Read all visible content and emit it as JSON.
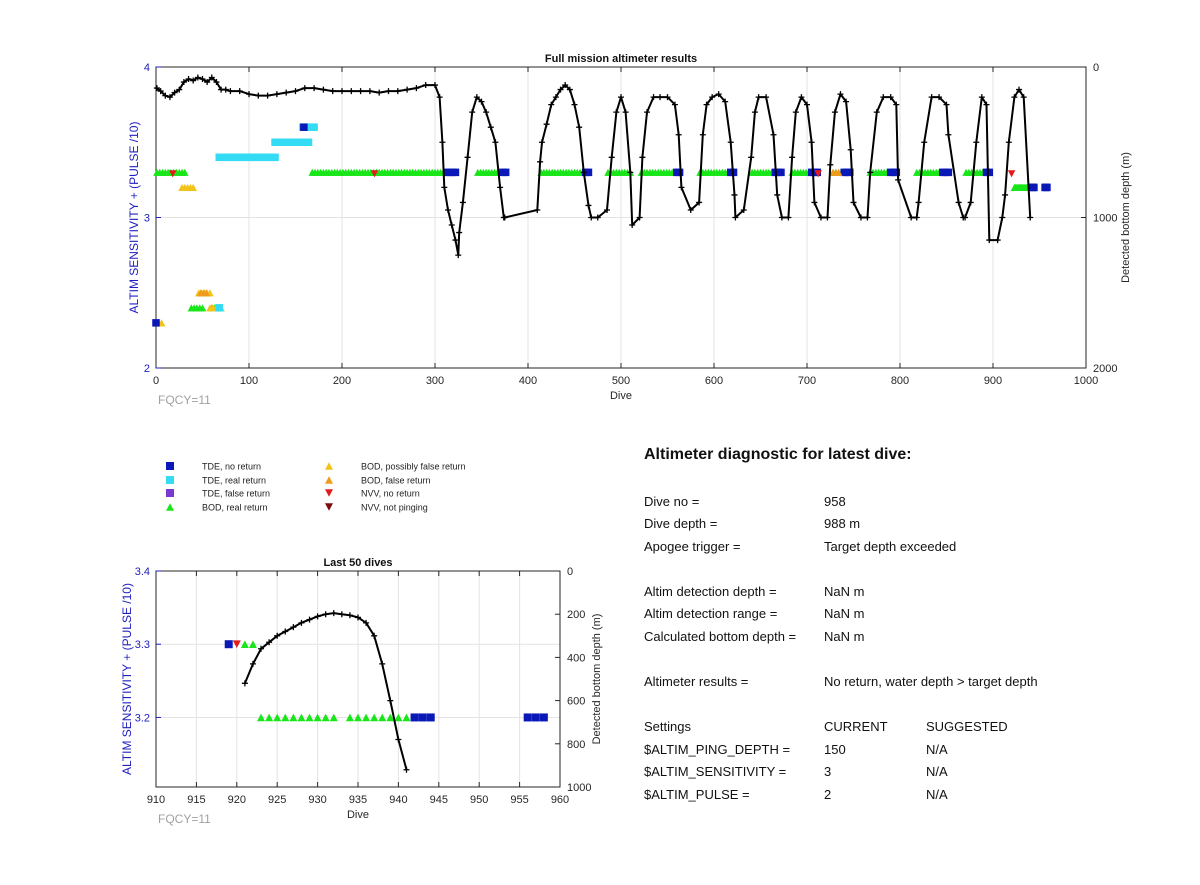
{
  "colors": {
    "tde_no_return": "#0a18b8",
    "tde_real_return": "#33dcf4",
    "tde_false_return": "#7a3ad0",
    "bod_real_return": "#19e619",
    "bod_possibly_false": "#f2c41a",
    "bod_false_return": "#f09a1c",
    "nvv_no_return": "#e31b1b",
    "nvv_not_pinging": "#7a0d0d",
    "axis_left": "#2020c0",
    "fqcy": "#a0a0a0",
    "depth_line": "#000000"
  },
  "chart_data": [
    {
      "id": "full",
      "type": "scatter",
      "title": "Full mission altimeter results",
      "xlabel": "Dive",
      "ylabel_left": "ALTIM SENSITIVITY + (PULSE /10)",
      "ylabel_right": "Detected bottom depth (m)",
      "note": "FQCY=11",
      "xlim": [
        0,
        1000
      ],
      "ylim_left": [
        2,
        4
      ],
      "ylim_right": [
        0,
        2000
      ],
      "right_reversed": true,
      "grid": true,
      "xticks": [
        "0",
        "100",
        "200",
        "300",
        "400",
        "500",
        "600",
        "700",
        "800",
        "900",
        "1000"
      ],
      "yticks_left": [
        "2",
        "3",
        "4"
      ],
      "yticks_right": [
        "0",
        "1000",
        "2000"
      ],
      "marker_runs": [
        {
          "kind": "bod_real_return",
          "y": 3.3,
          "x0": 1,
          "x1": 32,
          "step": 3
        },
        {
          "kind": "bod_real_return",
          "y": 3.3,
          "x0": 168,
          "x1": 312,
          "step": 3
        },
        {
          "kind": "bod_real_return",
          "y": 3.3,
          "x0": 346,
          "x1": 372,
          "step": 3
        },
        {
          "kind": "bod_real_return",
          "y": 3.3,
          "x0": 414,
          "x1": 462,
          "step": 3
        },
        {
          "kind": "bod_real_return",
          "y": 3.3,
          "x0": 486,
          "x1": 512,
          "step": 3
        },
        {
          "kind": "bod_real_return",
          "y": 3.3,
          "x0": 522,
          "x1": 560,
          "step": 3
        },
        {
          "kind": "bod_real_return",
          "y": 3.3,
          "x0": 585,
          "x1": 618,
          "step": 3
        },
        {
          "kind": "bod_real_return",
          "y": 3.3,
          "x0": 641,
          "x1": 666,
          "step": 3
        },
        {
          "kind": "bod_real_return",
          "y": 3.3,
          "x0": 684,
          "x1": 702,
          "step": 3
        },
        {
          "kind": "bod_real_return",
          "y": 3.3,
          "x0": 728,
          "x1": 740,
          "step": 3
        },
        {
          "kind": "bod_real_return",
          "y": 3.3,
          "x0": 768,
          "x1": 790,
          "step": 3
        },
        {
          "kind": "bod_real_return",
          "y": 3.3,
          "x0": 818,
          "x1": 846,
          "step": 3
        },
        {
          "kind": "bod_real_return",
          "y": 3.3,
          "x0": 871,
          "x1": 893,
          "step": 3
        },
        {
          "kind": "bod_real_return",
          "y": 3.2,
          "x0": 923,
          "x1": 941,
          "step": 1
        },
        {
          "kind": "bod_real_return",
          "y": 2.4,
          "x0": 38,
          "x1": 52,
          "step": 3
        },
        {
          "kind": "bod_real_return",
          "y": 2.4,
          "x0": 60,
          "x1": 70,
          "step": 3
        },
        {
          "kind": "tde_no_return",
          "y": 3.3,
          "x0": 313,
          "x1": 322,
          "step": 3
        },
        {
          "kind": "tde_no_return",
          "y": 3.3,
          "x0": 373,
          "x1": 378,
          "step": 3
        },
        {
          "kind": "tde_no_return",
          "y": 3.3,
          "x0": 462,
          "x1": 466,
          "step": 3
        },
        {
          "kind": "tde_no_return",
          "y": 3.3,
          "x0": 560,
          "x1": 564,
          "step": 3
        },
        {
          "kind": "tde_no_return",
          "y": 3.3,
          "x0": 618,
          "x1": 622,
          "step": 3
        },
        {
          "kind": "tde_no_return",
          "y": 3.3,
          "x0": 666,
          "x1": 672,
          "step": 3
        },
        {
          "kind": "tde_no_return",
          "y": 3.3,
          "x0": 705,
          "x1": 711,
          "step": 3
        },
        {
          "kind": "tde_no_return",
          "y": 3.3,
          "x0": 740,
          "x1": 747,
          "step": 3
        },
        {
          "kind": "tde_no_return",
          "y": 3.3,
          "x0": 790,
          "x1": 796,
          "step": 3
        },
        {
          "kind": "tde_no_return",
          "y": 3.3,
          "x0": 846,
          "x1": 852,
          "step": 3
        },
        {
          "kind": "tde_no_return",
          "y": 3.3,
          "x0": 893,
          "x1": 898,
          "step": 3
        },
        {
          "kind": "tde_no_return",
          "y": 3.2,
          "x0": 942,
          "x1": 944,
          "step": 1
        },
        {
          "kind": "tde_no_return",
          "y": 3.2,
          "x0": 956,
          "x1": 958,
          "step": 1
        },
        {
          "kind": "tde_real_return",
          "y": 3.4,
          "x0": 68,
          "x1": 130,
          "step": 3
        },
        {
          "kind": "tde_real_return",
          "y": 3.5,
          "x0": 128,
          "x1": 164,
          "step": 3
        },
        {
          "kind": "tde_real_return",
          "y": 3.6,
          "x0": 158,
          "x1": 170,
          "step": 3
        },
        {
          "kind": "bod_possibly_false",
          "y": 3.2,
          "x0": 28,
          "x1": 42,
          "step": 3
        },
        {
          "kind": "bod_possibly_false",
          "y": 2.3,
          "x0": 0,
          "x1": 6,
          "step": 3
        },
        {
          "kind": "bod_possibly_false",
          "y": 2.5,
          "x0": 46,
          "x1": 60,
          "step": 3
        },
        {
          "kind": "bod_possibly_false",
          "y": 2.4,
          "x0": 58,
          "x1": 72,
          "step": 3
        },
        {
          "kind": "bod_false_return",
          "y": 3.3,
          "x0": 728,
          "x1": 734,
          "step": 3
        },
        {
          "kind": "bod_false_return",
          "y": 2.5,
          "x0": 48,
          "x1": 56,
          "step": 3
        }
      ],
      "points": [
        {
          "kind": "nvv_no_return",
          "x": 18,
          "y": 3.29
        },
        {
          "kind": "nvv_no_return",
          "x": 235,
          "y": 3.29
        },
        {
          "kind": "nvv_no_return",
          "x": 712,
          "y": 3.29
        },
        {
          "kind": "nvv_no_return",
          "x": 920,
          "y": 3.29
        },
        {
          "kind": "tde_no_return",
          "x": 159,
          "y": 3.6
        },
        {
          "kind": "tde_no_return",
          "x": 0,
          "y": 2.3
        },
        {
          "kind": "tde_real_return",
          "x": 68,
          "y": 2.4
        }
      ],
      "depth_series": {
        "name": "Detected bottom depth",
        "x": [
          1,
          5,
          10,
          15,
          20,
          25,
          30,
          35,
          40,
          45,
          50,
          55,
          60,
          65,
          70,
          75,
          80,
          90,
          100,
          110,
          120,
          130,
          140,
          150,
          160,
          170,
          180,
          190,
          200,
          210,
          220,
          230,
          240,
          250,
          260,
          270,
          280,
          290,
          300,
          305,
          308,
          310,
          314,
          318,
          322,
          325,
          326,
          330,
          335,
          340,
          345,
          350,
          355,
          360,
          365,
          370,
          374,
          375,
          410,
          413,
          415,
          420,
          425,
          430,
          435,
          440,
          445,
          450,
          455,
          460,
          465,
          468,
          475,
          485,
          490,
          495,
          500,
          505,
          510,
          512,
          520,
          523,
          528,
          535,
          542,
          550,
          558,
          562,
          565,
          575,
          584,
          588,
          592,
          598,
          605,
          612,
          618,
          622,
          623,
          632,
          640,
          644,
          648,
          656,
          664,
          668,
          673,
          680,
          684,
          688,
          694,
          700,
          705,
          708,
          715,
          722,
          725,
          730,
          736,
          742,
          747,
          750,
          758,
          765,
          768,
          775,
          782,
          790,
          796,
          798,
          812,
          818,
          820,
          826,
          834,
          842,
          850,
          852,
          863,
          868,
          870,
          876,
          882,
          888,
          893,
          896,
          905,
          910,
          913,
          917,
          923,
          928,
          933,
          940
        ],
        "y": [
          140,
          160,
          190,
          200,
          170,
          150,
          100,
          80,
          90,
          70,
          80,
          100,
          70,
          100,
          150,
          150,
          160,
          160,
          180,
          190,
          190,
          180,
          170,
          160,
          140,
          140,
          150,
          160,
          160,
          160,
          160,
          160,
          170,
          160,
          160,
          150,
          140,
          120,
          120,
          200,
          500,
          800,
          950,
          1050,
          1150,
          1250,
          1100,
          900,
          600,
          300,
          200,
          230,
          300,
          400,
          500,
          800,
          1000,
          1000,
          950,
          630,
          500,
          380,
          250,
          200,
          150,
          120,
          150,
          250,
          400,
          700,
          920,
          1000,
          1000,
          950,
          600,
          300,
          200,
          300,
          700,
          1050,
          1000,
          600,
          300,
          200,
          200,
          200,
          250,
          450,
          800,
          950,
          900,
          450,
          250,
          200,
          180,
          230,
          500,
          850,
          1000,
          950,
          600,
          300,
          200,
          200,
          450,
          850,
          1000,
          1000,
          600,
          300,
          200,
          250,
          500,
          900,
          1000,
          1000,
          650,
          300,
          180,
          230,
          550,
          900,
          1000,
          1000,
          700,
          300,
          200,
          200,
          250,
          750,
          1000,
          1000,
          900,
          500,
          200,
          200,
          250,
          450,
          900,
          1000,
          1000,
          900,
          500,
          200,
          250,
          1150,
          1150,
          1000,
          850,
          500,
          200,
          150,
          200,
          1000
        ]
      }
    },
    {
      "id": "last50",
      "type": "scatter",
      "title": "Last 50 dives",
      "xlabel": "Dive",
      "ylabel_left": "ALTIM SENSITIVITY + (PULSE /10)",
      "ylabel_right": "Detected bottom depth (m)",
      "note": "FQCY=11",
      "xlim": [
        910,
        960
      ],
      "ylim_left": [
        3.105,
        3.4
      ],
      "ylim_right": [
        0,
        1000
      ],
      "right_reversed": true,
      "grid": true,
      "xticks": [
        "910",
        "915",
        "920",
        "925",
        "930",
        "935",
        "940",
        "945",
        "950",
        "955",
        "960"
      ],
      "yticks_left": [
        "3.2",
        "3.3",
        "3.4"
      ],
      "yticks_right": [
        "0",
        "200",
        "400",
        "600",
        "800",
        "1000"
      ],
      "points": [
        {
          "kind": "tde_no_return",
          "x": 919,
          "y": 3.3
        },
        {
          "kind": "nvv_no_return",
          "x": 920,
          "y": 3.3
        },
        {
          "kind": "bod_real_return",
          "x": 921,
          "y": 3.3
        },
        {
          "kind": "bod_real_return",
          "x": 922,
          "y": 3.3
        },
        {
          "kind": "bod_real_return",
          "x": 923,
          "y": 3.2
        },
        {
          "kind": "bod_real_return",
          "x": 924,
          "y": 3.2
        },
        {
          "kind": "bod_real_return",
          "x": 925,
          "y": 3.2
        },
        {
          "kind": "bod_real_return",
          "x": 926,
          "y": 3.2
        },
        {
          "kind": "bod_real_return",
          "x": 927,
          "y": 3.2
        },
        {
          "kind": "bod_real_return",
          "x": 928,
          "y": 3.2
        },
        {
          "kind": "bod_real_return",
          "x": 929,
          "y": 3.2
        },
        {
          "kind": "bod_real_return",
          "x": 930,
          "y": 3.2
        },
        {
          "kind": "bod_real_return",
          "x": 931,
          "y": 3.2
        },
        {
          "kind": "bod_real_return",
          "x": 932,
          "y": 3.2
        },
        {
          "kind": "bod_real_return",
          "x": 934,
          "y": 3.2
        },
        {
          "kind": "bod_real_return",
          "x": 935,
          "y": 3.2
        },
        {
          "kind": "bod_real_return",
          "x": 936,
          "y": 3.2
        },
        {
          "kind": "bod_real_return",
          "x": 937,
          "y": 3.2
        },
        {
          "kind": "bod_real_return",
          "x": 938,
          "y": 3.2
        },
        {
          "kind": "bod_real_return",
          "x": 939,
          "y": 3.2
        },
        {
          "kind": "bod_real_return",
          "x": 940,
          "y": 3.2
        },
        {
          "kind": "bod_real_return",
          "x": 941,
          "y": 3.2
        },
        {
          "kind": "tde_no_return",
          "x": 942,
          "y": 3.2
        },
        {
          "kind": "tde_no_return",
          "x": 943,
          "y": 3.2
        },
        {
          "kind": "tde_no_return",
          "x": 944,
          "y": 3.2
        },
        {
          "kind": "tde_no_return",
          "x": 956,
          "y": 3.2
        },
        {
          "kind": "tde_no_return",
          "x": 957,
          "y": 3.2
        },
        {
          "kind": "tde_no_return",
          "x": 958,
          "y": 3.2
        }
      ],
      "depth_series": {
        "name": "Detected bottom depth",
        "x": [
          921,
          922,
          923,
          924,
          925,
          926,
          927,
          928,
          929,
          930,
          931,
          932,
          933,
          934,
          935,
          936,
          937,
          938,
          939,
          940,
          941
        ],
        "y": [
          520,
          430,
          360,
          330,
          300,
          280,
          260,
          240,
          225,
          210,
          200,
          195,
          200,
          205,
          215,
          240,
          300,
          430,
          600,
          780,
          920
        ]
      }
    }
  ],
  "legend": {
    "items": [
      {
        "kind": "tde_no_return",
        "label": "TDE, no return"
      },
      {
        "kind": "tde_real_return",
        "label": "TDE, real return"
      },
      {
        "kind": "tde_false_return",
        "label": "TDE, false return"
      },
      {
        "kind": "bod_real_return",
        "label": "BOD, real return"
      },
      {
        "kind": "bod_possibly_false",
        "label": "BOD, possibly false return"
      },
      {
        "kind": "bod_false_return",
        "label": "BOD, false return"
      },
      {
        "kind": "nvv_no_return",
        "label": "NVV, no return"
      },
      {
        "kind": "nvv_not_pinging",
        "label": "NVV, not pinging"
      }
    ]
  },
  "diagnostic": {
    "title": "Altimeter diagnostic for latest dive:",
    "dive_no": {
      "label": "Dive no =",
      "value": "958"
    },
    "dive_depth": {
      "label": "Dive depth =",
      "value": "988 m"
    },
    "apogee": {
      "label": "Apogee trigger =",
      "value": "Target depth exceeded"
    },
    "det_depth": {
      "label": "Altim detection depth =",
      "value": "NaN m"
    },
    "det_range": {
      "label": "Altim detection range =",
      "value": "NaN m"
    },
    "calc_bottom": {
      "label": "Calculated bottom depth =",
      "value": "NaN m"
    },
    "results": {
      "label": "Altimeter results =",
      "value": "No return, water depth > target depth"
    },
    "settings_header": {
      "label": "Settings",
      "current": "CURRENT",
      "suggested": "SUGGESTED"
    },
    "ping_depth": {
      "label": "$ALTIM_PING_DEPTH =",
      "current": "150",
      "suggested": "N/A"
    },
    "sensitivity": {
      "label": "$ALTIM_SENSITIVITY =",
      "current": "3",
      "suggested": "N/A"
    },
    "pulse": {
      "label": "$ALTIM_PULSE =",
      "current": "2",
      "suggested": "N/A"
    }
  }
}
